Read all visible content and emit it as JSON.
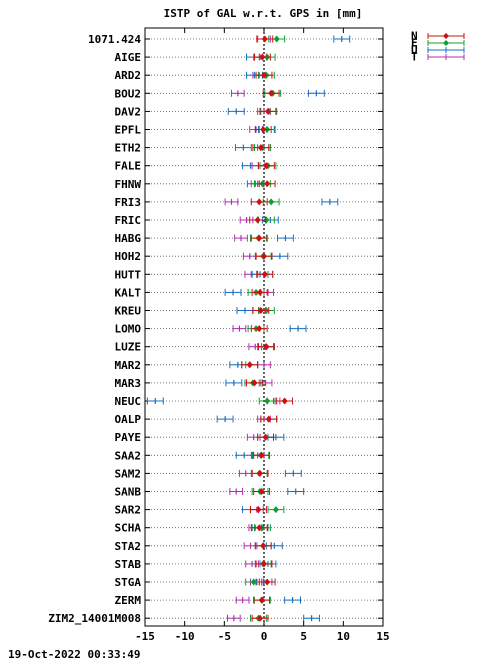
{
  "chart_data": {
    "type": "scatter",
    "title": "ISTP of GAL w.r.t. GPS in [mm]",
    "xlim": [
      -15,
      15
    ],
    "x_ticks": [
      "-15",
      "-10",
      "-5",
      "0",
      "5",
      "10",
      "15"
    ],
    "x_tick_values": [
      -15,
      -10,
      -5,
      0,
      5,
      10,
      15
    ],
    "zero_line": "dashed",
    "grid": "dotted horizontal per station",
    "legend_position": "top-right",
    "categories": [
      "1071.424",
      "AIGE",
      "ARD2",
      "BOU2",
      "DAV2",
      "EPFL",
      "ETH2",
      "FALE",
      "FHNW",
      "FRI3",
      "FRIC",
      "HABG",
      "HOH2",
      "HUTT",
      "KALT",
      "KREU",
      "LOMO",
      "LUZE",
      "MAR2",
      "MAR3",
      "NEUC",
      "OALP",
      "PAYE",
      "SAA2",
      "SAM2",
      "SANB",
      "SAR2",
      "SCHA",
      "STA2",
      "STAB",
      "STGA",
      "ZERM",
      "ZIM2_14001M008"
    ],
    "series": [
      {
        "name": "N",
        "color": "#d01010",
        "values": [
          0.1,
          -0.2,
          0.0,
          0.9,
          0.5,
          -0.1,
          -0.4,
          0.3,
          0.4,
          -0.6,
          -0.8,
          -0.6,
          0.0,
          0.1,
          -0.5,
          -0.4,
          -0.6,
          0.3,
          -1.8,
          -1.2,
          2.6,
          0.6,
          0.2,
          -0.3,
          -0.5,
          -0.3,
          -0.7,
          -0.6,
          -0.1,
          0.0,
          0.4,
          -0.3,
          -0.5
        ]
      },
      {
        "name": "E",
        "color": "#10a030",
        "values": [
          1.6,
          0.4,
          0.3,
          1.1,
          0.6,
          0.4,
          -0.2,
          0.5,
          -0.2,
          0.9,
          0.3,
          -0.7,
          -0.1,
          0.1,
          -1.0,
          0.3,
          -1.0,
          0.3,
          -1.8,
          -1.4,
          0.4,
          0.6,
          0.2,
          -0.4,
          -0.6,
          -0.5,
          1.5,
          -0.2,
          -0.1,
          -0.1,
          -1.3,
          -0.2,
          -0.7
        ]
      },
      {
        "name": "U",
        "color": "#1a6fc0",
        "values": [
          9.8,
          -1.2,
          -1.2,
          6.6,
          -3.5,
          0.3,
          -2.6,
          -1.7,
          -1.1,
          8.3,
          0.8,
          2.7,
          2.0,
          -0.5,
          -3.9,
          -2.4,
          4.3,
          0.2,
          -3.3,
          -3.8,
          -13.7,
          -4.9,
          1.5,
          -2.5,
          3.7,
          4.0,
          -1.7,
          -0.5,
          1.3,
          0.5,
          0.0,
          3.6,
          6.0
        ]
      },
      {
        "name": "T",
        "color": "#b030b0",
        "values": [
          0.0,
          -0.5,
          -0.6,
          -3.3,
          0.0,
          -1.0,
          0.0,
          -0.7,
          -0.8,
          -4.1,
          -2.2,
          -2.9,
          -1.8,
          -1.6,
          0.4,
          -0.6,
          -3.1,
          -1.1,
          0.0,
          0.2,
          1.2,
          0.0,
          -1.3,
          -0.8,
          -2.3,
          -3.5,
          -0.9,
          -1.1,
          -1.7,
          -1.5,
          -0.9,
          -2.7,
          -3.8
        ]
      }
    ]
  },
  "timestamp": "19-Oct-2022 00:33:49"
}
